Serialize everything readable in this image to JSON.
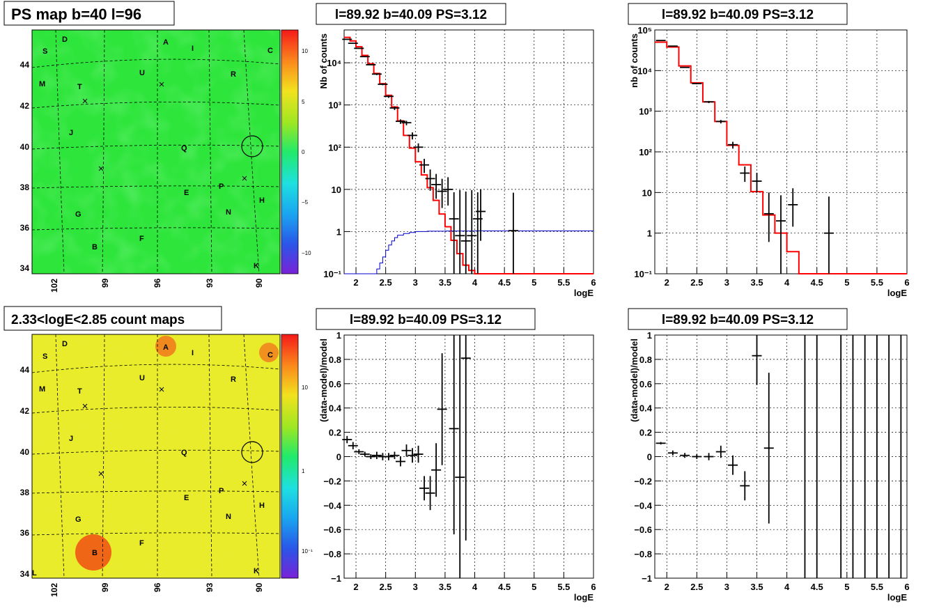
{
  "colors": {
    "map_green": "#2ee53b",
    "data": "#000000",
    "model": "#ff0000",
    "background_model": "#0000cc",
    "grid": "#000000"
  },
  "panels": [
    {
      "title": "PS map b=40 l=96",
      "kind": "map",
      "xticks": [
        "102",
        "99",
        "96",
        "93",
        "90"
      ],
      "yticks": [
        "44",
        "42",
        "40",
        "38",
        "36",
        "34"
      ],
      "palette_ticks": [
        "10",
        "5",
        "0",
        "−5",
        "−10"
      ],
      "labels": [
        "D",
        "A",
        "I",
        "C",
        "S",
        "M",
        "T",
        "U",
        "R",
        "J",
        "Q",
        "P",
        "H",
        "E",
        "N",
        "G",
        "F",
        "B",
        "K"
      ]
    },
    {
      "title": "2.33<logE<2.85 count maps",
      "kind": "map",
      "xticks": [
        "102",
        "99",
        "96",
        "93",
        "90"
      ],
      "yticks": [
        "44",
        "42",
        "40",
        "38",
        "36",
        "34"
      ],
      "palette_ticks": [
        "10",
        "1",
        "10⁻¹"
      ],
      "labels": [
        "D",
        "A",
        "I",
        "C",
        "S",
        "M",
        "T",
        "U",
        "R",
        "J",
        "Q",
        "P",
        "H",
        "E",
        "N",
        "G",
        "F",
        "B",
        "K",
        "L"
      ]
    }
  ],
  "chart_data": [
    {
      "type": "line",
      "title": "l=89.92 b=40.09 PS=3.12",
      "xlabel": "logE",
      "ylabel": "Nb of counts",
      "xlim": [
        1.8,
        6
      ],
      "ylim": [
        0.1,
        60000
      ],
      "yscale": "log",
      "xticks": [
        "2",
        "2.5",
        "3",
        "3.5",
        "4",
        "4.5",
        "5",
        "5.5",
        "6"
      ],
      "yticks": [
        "10⁻¹",
        "1",
        "10",
        "10²",
        "10³",
        "10⁴"
      ],
      "grid": true,
      "series": [
        {
          "x": [
            1.8,
            1.9,
            2.0,
            2.1,
            2.2,
            2.3,
            2.4,
            2.5,
            2.6,
            2.7,
            2.8,
            2.9,
            3.0,
            3.1,
            3.2,
            3.3,
            3.4,
            3.5,
            3.6,
            3.7,
            3.8,
            3.9,
            4.0,
            4.1,
            4.2,
            4.3,
            6.0
          ],
          "y": [
            40000,
            33000,
            24000,
            15000,
            9500,
            5600,
            3200,
            1700,
            900,
            420,
            190,
            95,
            45,
            22,
            11,
            5.5,
            2.6,
            1.3,
            0.62,
            0.3,
            0.16,
            0.12,
            0.1,
            0.1,
            0.1,
            0.1,
            0.1
          ]
        },
        {
          "x": [
            1.8,
            2.3,
            2.35,
            2.4,
            2.45,
            2.5,
            2.55,
            2.6,
            2.65,
            2.7,
            2.8,
            2.9,
            3.0,
            3.2,
            3.5,
            4.0,
            6.0
          ],
          "y": [
            0.1,
            0.1,
            0.13,
            0.18,
            0.25,
            0.36,
            0.48,
            0.6,
            0.72,
            0.82,
            0.9,
            0.95,
            1.0,
            1.02,
            1.03,
            1.04,
            1.05
          ]
        },
        {
          "x": [
            1.85,
            1.95,
            2.05,
            2.15,
            2.25,
            2.35,
            2.45,
            2.55,
            2.65,
            2.75,
            2.85,
            2.95,
            3.05,
            3.15,
            3.25,
            3.35,
            3.45,
            3.55,
            3.65,
            3.75,
            3.85,
            3.95,
            4.05,
            4.1,
            4.65
          ],
          "y": [
            36000,
            29000,
            22000,
            14000,
            9000,
            5400,
            3100,
            1600,
            850,
            410,
            380,
            190,
            100,
            38,
            18,
            13,
            9,
            10,
            2,
            0.8,
            0.6,
            0.8,
            2,
            3,
            1.05
          ],
          "err": [
            0.01,
            0.01,
            0.01,
            0.01,
            0.01,
            0.02,
            0.02,
            0.03,
            0.04,
            0.05,
            0.05,
            0.08,
            0.1,
            0.16,
            0.24,
            0.28,
            0.33,
            0.32,
            0.7,
            1.2,
            1.3,
            1.2,
            0.7,
            0.58,
            1.0
          ]
        }
      ]
    },
    {
      "type": "line",
      "title": "l=89.92 b=40.09 PS=3.12",
      "xlabel": "logE",
      "ylabel": "nb of counts",
      "xlim": [
        1.8,
        6
      ],
      "ylim": [
        0.1,
        100000
      ],
      "yscale": "log",
      "xticks": [
        "2",
        "2.5",
        "3",
        "3.5",
        "4",
        "4.5",
        "5",
        "5.5",
        "6"
      ],
      "yticks": [
        "10⁻¹",
        "1",
        "10",
        "10²",
        "10³",
        "10⁴",
        "10⁵"
      ],
      "grid": true,
      "series": [
        {
          "x": [
            1.8,
            2.0,
            2.2,
            2.4,
            2.6,
            2.8,
            3.0,
            3.2,
            3.4,
            3.6,
            3.8,
            4.0,
            4.2,
            6.0
          ],
          "y": [
            50000,
            38000,
            13000,
            5000,
            1700,
            560,
            145,
            48,
            10.5,
            2.8,
            1.0,
            0.35,
            0.1,
            0.1
          ]
        },
        {
          "x": [
            1.9,
            2.1,
            2.3,
            2.5,
            2.7,
            2.9,
            3.1,
            3.3,
            3.5,
            3.7,
            3.9,
            4.1,
            4.7
          ],
          "y": [
            55000,
            40000,
            12000,
            4800,
            1700,
            560,
            150,
            30,
            19,
            3,
            2,
            5,
            1
          ],
          "err": [
            0.005,
            0.005,
            0.01,
            0.015,
            0.025,
            0.04,
            0.08,
            0.18,
            0.23,
            0.58,
            0.7,
            0.45,
            1.0
          ]
        }
      ]
    },
    {
      "type": "scatter",
      "title": "l=89.92 b=40.09 PS=3.12",
      "xlabel": "logE",
      "ylabel": "(data-model)/model",
      "xlim": [
        1.8,
        6
      ],
      "ylim": [
        -1,
        1
      ],
      "xticks": [
        "2",
        "2.5",
        "3",
        "3.5",
        "4",
        "4.5",
        "5",
        "5.5",
        "6"
      ],
      "yticks": [
        "−1",
        "−0.8",
        "−0.6",
        "−0.4",
        "−0.2",
        "0",
        "0.2",
        "0.4",
        "0.6",
        "0.8",
        "1"
      ],
      "grid": true,
      "points": {
        "x": [
          1.85,
          1.95,
          2.05,
          2.15,
          2.25,
          2.35,
          2.45,
          2.55,
          2.65,
          2.75,
          2.85,
          2.95,
          3.05,
          3.15,
          3.25,
          3.35,
          3.45,
          3.65,
          3.75,
          3.85
        ],
        "y": [
          0.14,
          0.09,
          0.04,
          0.02,
          0.0,
          0.01,
          0.0,
          0.0,
          0.01,
          -0.04,
          0.05,
          0.01,
          0.02,
          -0.26,
          -0.3,
          -0.11,
          0.39,
          0.23,
          -0.17,
          0.81
        ],
        "err": [
          0.03,
          0.03,
          0.02,
          0.02,
          0.02,
          0.03,
          0.03,
          0.03,
          0.03,
          0.04,
          0.05,
          0.06,
          0.07,
          0.1,
          0.14,
          0.22,
          0.46,
          0.87,
          1.4,
          1.5
        ]
      }
    },
    {
      "type": "scatter",
      "title": "l=89.92 b=40.09 PS=3.12",
      "xlabel": "logE",
      "ylabel": "(data-model)/model",
      "xlim": [
        1.8,
        6
      ],
      "ylim": [
        -1,
        1
      ],
      "xticks": [
        "2",
        "2.5",
        "3",
        "3.5",
        "4",
        "4.5",
        "5",
        "5.5",
        "6"
      ],
      "yticks": [
        "−1",
        "−0.8",
        "−0.6",
        "−0.4",
        "−0.2",
        "0",
        "0.2",
        "0.4",
        "0.6",
        "0.8",
        "1"
      ],
      "grid": true,
      "points": {
        "x": [
          1.9,
          2.1,
          2.3,
          2.5,
          2.7,
          2.9,
          3.1,
          3.3,
          3.5,
          3.7
        ],
        "y": [
          0.11,
          0.03,
          0.01,
          0.0,
          0.0,
          0.04,
          -0.07,
          -0.24,
          0.83,
          0.07
        ],
        "err": [
          0.01,
          0.02,
          0.02,
          0.02,
          0.03,
          0.05,
          0.08,
          0.12,
          0.24,
          0.62
        ]
      },
      "full_range_bars_x": [
        4.3,
        4.5,
        4.9,
        5.1,
        5.3,
        5.5,
        5.7,
        5.9
      ]
    }
  ]
}
